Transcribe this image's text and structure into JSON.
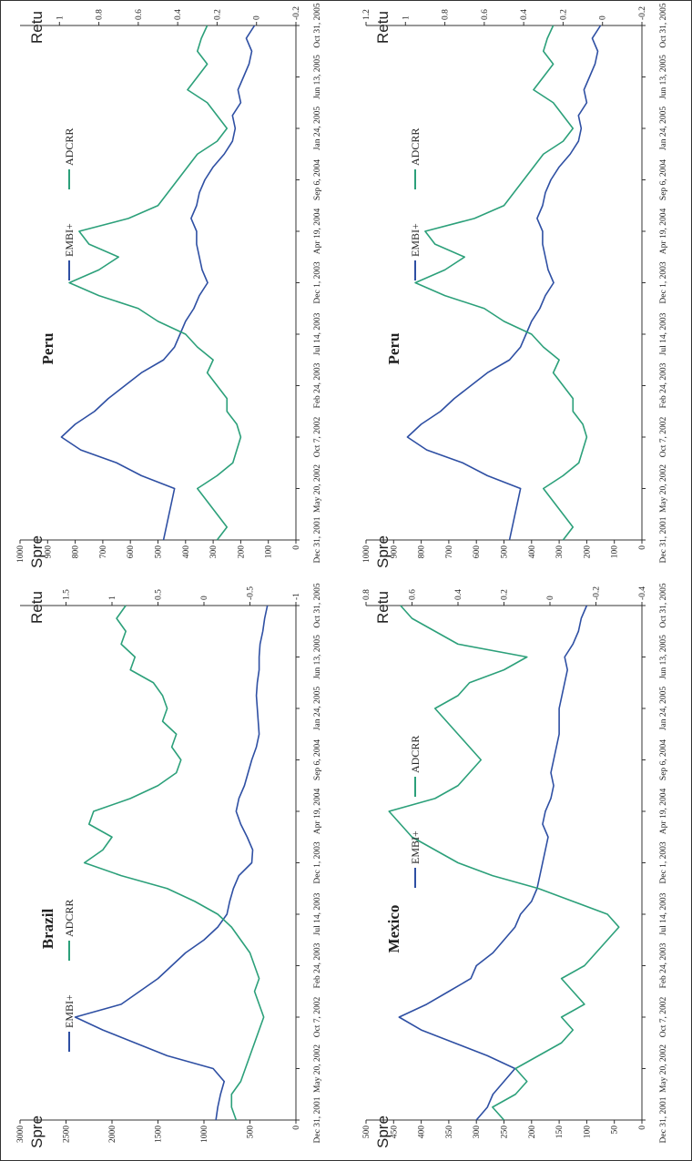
{
  "chart_data": [
    {
      "type": "line",
      "title": "Brazil",
      "y_label": "Spre",
      "y2_label": "Retu",
      "categories": [
        "Dec 31, 2001",
        null,
        null,
        null,
        "May 20, 2002",
        null,
        null,
        null,
        "Oct 7, 2002",
        null,
        null,
        null,
        "Feb 24, 2003",
        null,
        null,
        null,
        "Jul 14, 2003",
        null,
        null,
        null,
        "Dec 1, 2003",
        null,
        null,
        null,
        "Apr 19, 2004",
        null,
        null,
        null,
        "Sep 6, 2004",
        null,
        null,
        null,
        "Jan 24, 2005",
        null,
        null,
        null,
        "Jun 13, 2005",
        null,
        null,
        null,
        "Oct 31, 2005"
      ],
      "series": [
        {
          "name": "EMBI+",
          "color": "#2e4fa3",
          "values": [
            870,
            850,
            820,
            780,
            900,
            1400,
            1750,
            2100,
            2400,
            1900,
            1700,
            1500,
            1350,
            1200,
            1000,
            850,
            750,
            720,
            680,
            620,
            480,
            470,
            530,
            600,
            650,
            620,
            560,
            520,
            480,
            430,
            400,
            410,
            420,
            430,
            420,
            400,
            400,
            390,
            360,
            340,
            310
          ]
        },
        {
          "name": "ADCRR",
          "color": "#2ca07a",
          "axis": "y2",
          "values": [
            -0.35,
            -0.3,
            -0.3,
            -0.4,
            -0.45,
            -0.5,
            -0.55,
            -0.6,
            -0.65,
            -0.6,
            -0.55,
            -0.6,
            -0.55,
            -0.5,
            -0.4,
            -0.3,
            -0.15,
            0.1,
            0.4,
            0.9,
            1.3,
            1.1,
            1.0,
            1.25,
            1.2,
            0.8,
            0.5,
            0.3,
            0.25,
            0.35,
            0.3,
            0.45,
            0.4,
            0.45,
            0.55,
            0.8,
            0.75,
            0.9,
            0.85,
            0.95,
            0.85
          ]
        }
      ],
      "ylim": [
        0,
        3000
      ],
      "yticks": [
        0,
        500,
        1000,
        1500,
        2000,
        2500,
        3000
      ],
      "y2lim": [
        -1,
        2
      ],
      "y2ticks": [
        -1,
        -0.5,
        0,
        0.5,
        1,
        1.5
      ]
    },
    {
      "type": "line",
      "title": "Peru",
      "y_label": "Spre",
      "y2_label": "Retu",
      "categories": [
        "Dec 31, 2001",
        null,
        null,
        null,
        "May 20, 2002",
        null,
        null,
        null,
        "Oct 7, 2002",
        null,
        null,
        null,
        "Feb 24, 2003",
        null,
        null,
        null,
        "Jul 14, 2003",
        null,
        null,
        null,
        "Dec 1, 2003",
        null,
        null,
        null,
        "Apr 19, 2004",
        null,
        null,
        null,
        "Sep 6, 2004",
        null,
        null,
        null,
        "Jan 24, 2005",
        null,
        null,
        null,
        "Jun 13, 2005",
        null,
        null,
        null,
        "Oct 31, 2005"
      ],
      "series": [
        {
          "name": "EMBI+",
          "color": "#2e4fa3",
          "values": [
            480,
            470,
            460,
            450,
            440,
            560,
            650,
            780,
            850,
            800,
            730,
            680,
            620,
            560,
            480,
            440,
            420,
            400,
            370,
            350,
            320,
            340,
            350,
            360,
            360,
            380,
            360,
            350,
            330,
            300,
            260,
            230,
            220,
            230,
            200,
            210,
            190,
            170,
            160,
            180,
            150
          ]
        },
        {
          "name": "ADCRR",
          "color": "#2ca07a",
          "axis": "y2",
          "values": [
            0.2,
            0.15,
            0.2,
            0.25,
            0.3,
            0.2,
            0.12,
            0.1,
            0.08,
            0.1,
            0.15,
            0.15,
            0.2,
            0.25,
            0.22,
            0.3,
            0.36,
            0.5,
            0.6,
            0.8,
            0.95,
            0.8,
            0.7,
            0.85,
            0.9,
            0.65,
            0.5,
            0.45,
            0.4,
            0.35,
            0.3,
            0.2,
            0.15,
            0.2,
            0.25,
            0.35,
            0.3,
            0.25,
            0.3,
            0.28,
            0.25
          ]
        }
      ],
      "ylim": [
        0,
        1000
      ],
      "yticks": [
        0,
        100,
        200,
        300,
        400,
        500,
        600,
        700,
        800,
        900,
        1000
      ],
      "y2lim": [
        -0.2,
        1.2
      ],
      "y2ticks": [
        -0.2,
        0,
        0.2,
        0.4,
        0.6,
        0.8,
        1
      ]
    },
    {
      "type": "line",
      "title": "Mexico",
      "y_label": "Spre",
      "y2_label": "Retu",
      "categories": [
        "Dec 31, 2001",
        null,
        null,
        null,
        "May 20, 2002",
        null,
        null,
        null,
        "Oct 7, 2002",
        null,
        null,
        null,
        "Feb 24, 2003",
        null,
        null,
        null,
        "Jul 14, 2003",
        null,
        null,
        null,
        "Dec 1, 2003",
        null,
        null,
        null,
        "Apr 19, 2004",
        null,
        null,
        null,
        "Sep 6, 2004",
        null,
        null,
        null,
        "Jan 24, 2005",
        null,
        null,
        null,
        "Jun 13, 2005",
        null,
        null,
        null,
        "Oct 31, 2005"
      ],
      "series": [
        {
          "name": "EMBI+",
          "color": "#2e4fa3",
          "values": [
            300,
            280,
            270,
            250,
            230,
            280,
            340,
            400,
            440,
            390,
            350,
            310,
            300,
            270,
            250,
            230,
            220,
            200,
            190,
            185,
            180,
            175,
            170,
            180,
            175,
            165,
            160,
            165,
            160,
            155,
            150,
            150,
            150,
            145,
            140,
            135,
            140,
            125,
            115,
            110,
            100
          ]
        },
        {
          "name": "ADCRR",
          "color": "#2ca07a",
          "axis": "y2",
          "values": [
            0.2,
            0.25,
            0.15,
            0.1,
            0.15,
            0.05,
            -0.05,
            -0.1,
            -0.05,
            -0.15,
            -0.1,
            -0.05,
            -0.15,
            -0.2,
            -0.25,
            -0.3,
            -0.25,
            -0.1,
            0.05,
            0.25,
            0.4,
            0.5,
            0.6,
            0.65,
            0.7,
            0.5,
            0.4,
            0.35,
            0.3,
            0.35,
            0.4,
            0.45,
            0.5,
            0.4,
            0.35,
            0.2,
            0.1,
            0.4,
            0.5,
            0.6,
            0.65
          ]
        }
      ],
      "ylim": [
        0,
        500
      ],
      "yticks": [
        0,
        50,
        100,
        150,
        200,
        250,
        300,
        350,
        400,
        450,
        500
      ],
      "y2lim": [
        -0.4,
        0.8
      ],
      "y2ticks": [
        -0.4,
        -0.2,
        0,
        0.2,
        0.4,
        0.6,
        0.8
      ]
    },
    {
      "type": "line",
      "title": "Peru",
      "y_label": "Spre",
      "y2_label": "Retu",
      "categories": [
        "Dec 31, 2001",
        null,
        null,
        null,
        "May 20, 2002",
        null,
        null,
        null,
        "Oct 7, 2002",
        null,
        null,
        null,
        "Feb 24, 2003",
        null,
        null,
        null,
        "Jul 14, 2003",
        null,
        null,
        null,
        "Dec 1, 2003",
        null,
        null,
        null,
        "Apr 19, 2004",
        null,
        null,
        null,
        "Sep 6, 2004",
        null,
        null,
        null,
        "Jan 24, 2005",
        null,
        null,
        null,
        "Jun 13, 2005",
        null,
        null,
        null,
        "Oct 31, 2005"
      ],
      "series": [
        {
          "name": "EMBI+",
          "color": "#2e4fa3",
          "values": [
            480,
            470,
            460,
            450,
            440,
            560,
            650,
            780,
            850,
            800,
            730,
            680,
            620,
            560,
            480,
            440,
            420,
            400,
            370,
            350,
            320,
            340,
            350,
            360,
            360,
            380,
            360,
            350,
            330,
            300,
            260,
            230,
            220,
            230,
            200,
            210,
            190,
            170,
            160,
            180,
            150
          ]
        },
        {
          "name": "ADCRR",
          "color": "#2ca07a",
          "axis": "y2",
          "values": [
            0.2,
            0.15,
            0.2,
            0.25,
            0.3,
            0.2,
            0.12,
            0.1,
            0.08,
            0.1,
            0.15,
            0.15,
            0.2,
            0.25,
            0.22,
            0.3,
            0.36,
            0.5,
            0.6,
            0.8,
            0.95,
            0.8,
            0.7,
            0.85,
            0.9,
            0.65,
            0.5,
            0.45,
            0.4,
            0.35,
            0.3,
            0.2,
            0.15,
            0.2,
            0.25,
            0.35,
            0.3,
            0.25,
            0.3,
            0.28,
            0.25
          ]
        }
      ],
      "ylim": [
        0,
        1000
      ],
      "yticks": [
        0,
        100,
        200,
        300,
        400,
        500,
        600,
        700,
        800,
        900,
        1000
      ],
      "y2lim": [
        -0.2,
        1.2
      ],
      "y2ticks": [
        -0.2,
        0,
        0.2,
        0.4,
        0.6,
        0.8,
        1,
        1.2
      ]
    }
  ]
}
